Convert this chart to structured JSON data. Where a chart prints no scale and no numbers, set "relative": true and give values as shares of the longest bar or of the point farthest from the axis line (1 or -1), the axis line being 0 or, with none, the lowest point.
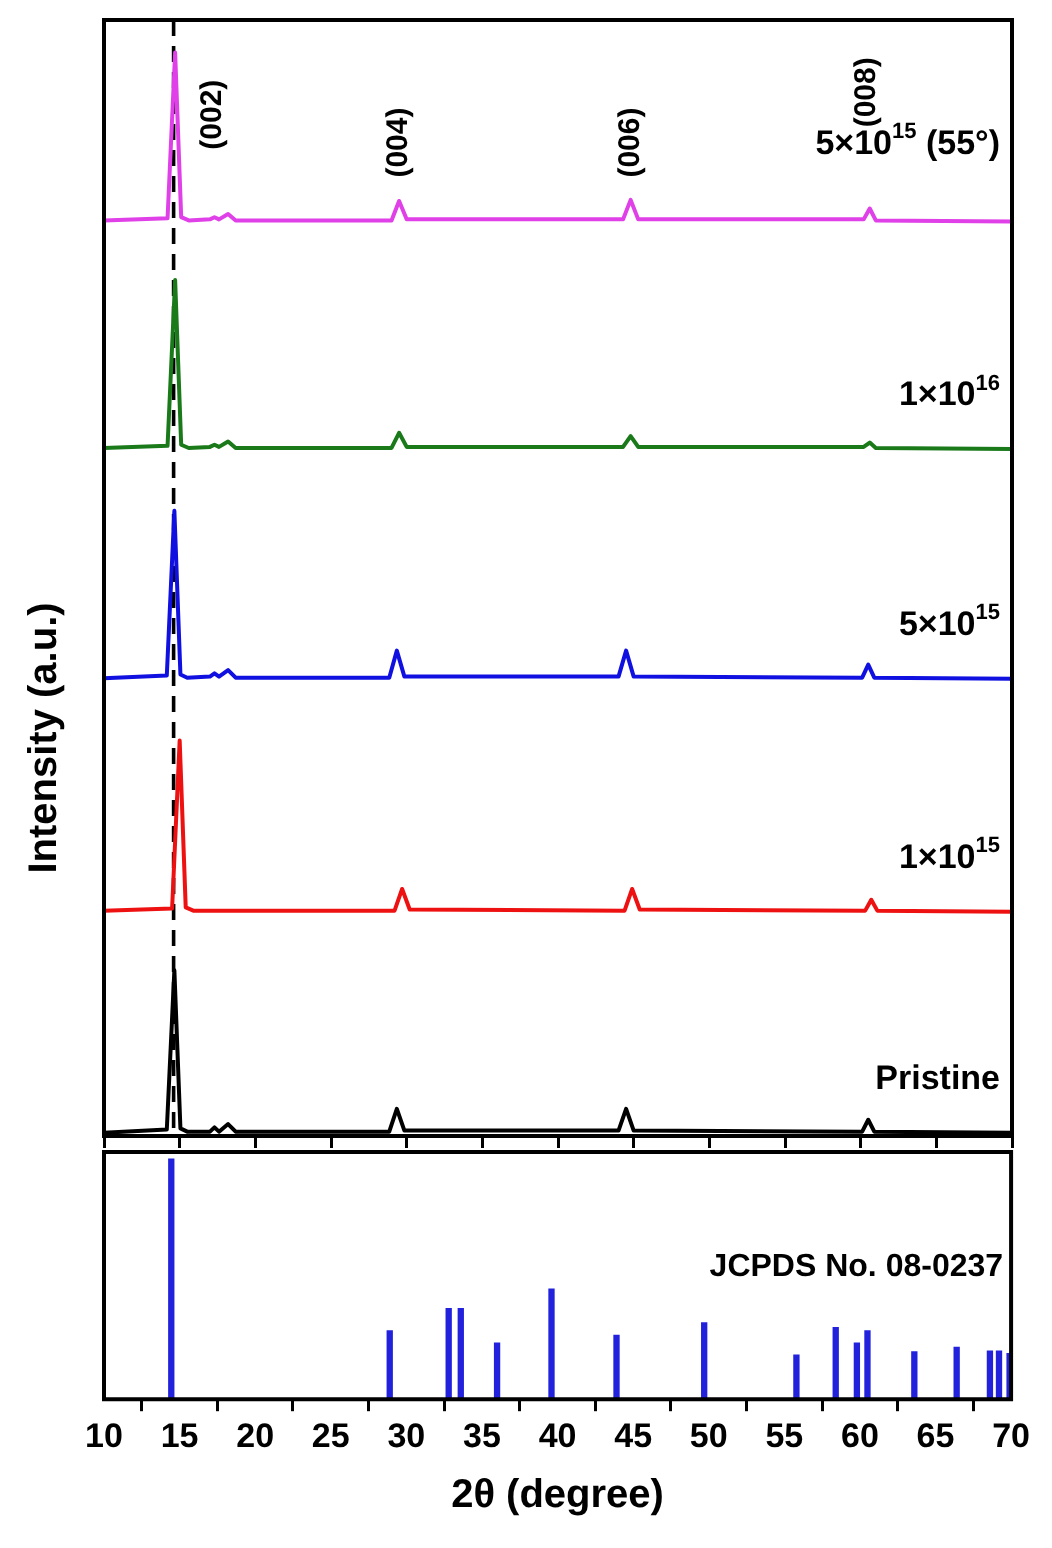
{
  "chart_data": [
    {
      "type": "line",
      "relative": true,
      "xlabel": null,
      "ylabel": "Intensity (a.u.)",
      "xlim": [
        10,
        70
      ],
      "xticks": [
        10,
        15,
        20,
        25,
        30,
        35,
        40,
        45,
        50,
        55,
        60,
        65,
        70
      ],
      "tick_labels": false,
      "grid": false,
      "legend": false,
      "marker": "none",
      "line_style": "solid",
      "series": [
        {
          "name": "5×10$^{15}$ (55°)",
          "color": "#e040e8",
          "x": [
            10,
            14.2,
            14.7,
            15.1,
            15.6,
            17.0,
            17.3,
            17.6,
            18.2,
            18.7,
            29.0,
            29.5,
            30.0,
            44.3,
            44.8,
            45.3,
            60.2,
            60.6,
            61.0,
            70
          ],
          "values": [
            0.845,
            0.847,
            1.0,
            0.848,
            0.845,
            0.846,
            0.848,
            0.846,
            0.851,
            0.845,
            0.845,
            0.863,
            0.846,
            0.846,
            0.864,
            0.846,
            0.846,
            0.856,
            0.845,
            0.844
          ]
        },
        {
          "name": "1×10$^{16}$",
          "color": "#1a7a1a",
          "x": [
            10,
            14.2,
            14.7,
            15.1,
            15.6,
            17.0,
            17.3,
            17.6,
            18.2,
            18.7,
            29.0,
            29.5,
            30.0,
            44.3,
            44.8,
            45.3,
            60.2,
            60.6,
            61.0,
            70
          ],
          "values": [
            0.635,
            0.637,
            0.79,
            0.638,
            0.635,
            0.636,
            0.638,
            0.636,
            0.641,
            0.635,
            0.635,
            0.649,
            0.636,
            0.636,
            0.646,
            0.636,
            0.636,
            0.64,
            0.635,
            0.634
          ]
        },
        {
          "name": "5×10$^{15}$",
          "color": "#1010e0",
          "x": [
            10,
            14.15,
            14.65,
            15.05,
            15.5,
            17.0,
            17.3,
            17.6,
            18.2,
            18.7,
            28.85,
            29.35,
            29.85,
            44.0,
            44.5,
            45.0,
            60.1,
            60.5,
            60.9,
            70
          ],
          "values": [
            0.4225,
            0.425,
            0.577,
            0.426,
            0.423,
            0.424,
            0.427,
            0.424,
            0.43,
            0.423,
            0.423,
            0.448,
            0.424,
            0.424,
            0.448,
            0.424,
            0.423,
            0.435,
            0.423,
            0.422
          ]
        },
        {
          "name": "1×10$^{15}$",
          "color": "#ee1111",
          "x": [
            10,
            14.5,
            15.0,
            15.4,
            15.9,
            29.2,
            29.7,
            30.2,
            44.4,
            44.9,
            45.4,
            60.3,
            60.7,
            61.1,
            70
          ],
          "values": [
            0.208,
            0.21,
            0.365,
            0.211,
            0.208,
            0.208,
            0.228,
            0.209,
            0.208,
            0.228,
            0.209,
            0.208,
            0.218,
            0.208,
            0.207
          ]
        },
        {
          "name": "Pristine",
          "color": "#000000",
          "x": [
            10,
            14.15,
            14.65,
            15.05,
            15.5,
            17.0,
            17.3,
            17.6,
            18.2,
            18.7,
            28.85,
            29.35,
            29.85,
            44.0,
            44.5,
            45.0,
            60.1,
            60.5,
            60.9,
            70
          ],
          "values": [
            0.003,
            0.006,
            0.153,
            0.007,
            0.004,
            0.004,
            0.008,
            0.004,
            0.011,
            0.004,
            0.004,
            0.025,
            0.005,
            0.005,
            0.025,
            0.005,
            0.004,
            0.015,
            0.004,
            0.003
          ]
        }
      ],
      "ref_lines": [
        {
          "axis": "x",
          "value": 14.6,
          "color": "#000000",
          "line_style": "dashed"
        }
      ],
      "annotations": [
        "(002)",
        "(004)",
        "(006)",
        "(008)"
      ]
    },
    {
      "type": "bar",
      "relative": true,
      "xlabel": "2θ (degree)",
      "xlim": [
        10,
        70
      ],
      "xticks": [
        10,
        15,
        20,
        25,
        30,
        35,
        40,
        45,
        50,
        55,
        60,
        65,
        70
      ],
      "tick_labels": "x",
      "grid": false,
      "legend": false,
      "x": [
        14.45,
        28.9,
        32.8,
        33.6,
        36.0,
        39.6,
        43.9,
        49.7,
        55.8,
        58.4,
        59.8,
        60.5,
        63.6,
        66.4,
        68.6,
        69.2,
        69.9
      ],
      "values": [
        1,
        0.285,
        0.377,
        0.377,
        0.233,
        0.459,
        0.266,
        0.318,
        0.184,
        0.298,
        0.233,
        0.285,
        0.197,
        0.216,
        0.2,
        0.2,
        0.19
      ],
      "color": "#2222dd",
      "annotations": [
        "JCPDS No. 08-0237"
      ]
    }
  ]
}
